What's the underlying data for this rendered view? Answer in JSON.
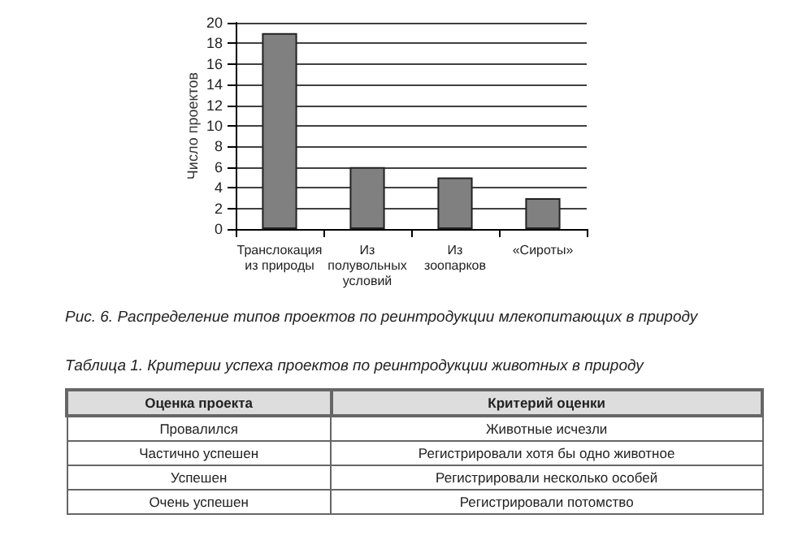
{
  "chart_data": [
    {
      "type": "bar",
      "title": "Рис. 6. Распределение типов проектов по реинтродукции млекопитающих в природу",
      "ylabel": "Число проектов",
      "categories": [
        "Транслокация\nиз природы",
        "Из\nполувольных\nусловий",
        "Из\nзоопарков",
        "«Сироты»"
      ],
      "values": [
        19,
        6,
        5,
        3
      ],
      "color": "#808080",
      "ylim": [
        0,
        20
      ],
      "yticks": [
        0,
        2,
        4,
        6,
        8,
        10,
        12,
        14,
        16,
        18,
        20
      ],
      "grid": "y"
    },
    {
      "type": "other",
      "title": "Таблица 1. Критерии успеха проектов по реинтродукции животных в природу",
      "annotations": [
        "Оценка проекта",
        "Критерий оценки",
        "Провалился",
        "Животные исчезли",
        "Частично успешен",
        "Регистрировали хотя бы одно животное",
        "Успешен",
        "Регистрировали несколько особей",
        "Очень успешен",
        "Регистрировали потомство"
      ]
    }
  ]
}
